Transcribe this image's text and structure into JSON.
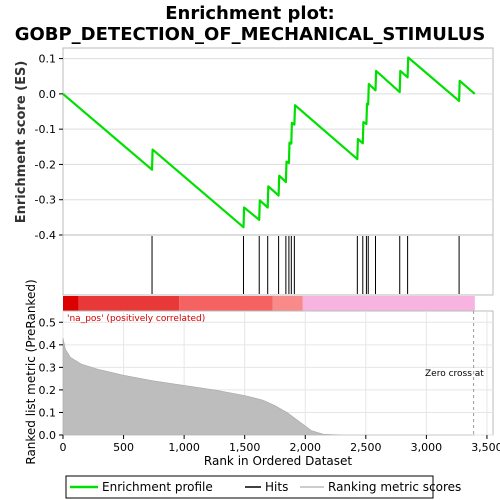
{
  "chart_data": {
    "type": "line",
    "title_line1": "Enrichment plot:",
    "title_line2": "GOBP_DETECTION_OF_MECHANICAL_STIMULUS",
    "top_panel": {
      "ylabel": "Enrichment score (ES)",
      "ylim": [
        -0.4,
        0.13
      ],
      "yticks": [
        {
          "v": 0.1,
          "label": "0.1"
        },
        {
          "v": 0.0,
          "label": "0.0"
        },
        {
          "v": -0.1,
          "label": "-0.1"
        },
        {
          "v": -0.2,
          "label": "-0.2"
        },
        {
          "v": -0.3,
          "label": "-0.3"
        },
        {
          "v": -0.4,
          "label": "-0.4"
        }
      ],
      "series": [
        {
          "name": "Enrichment profile",
          "color": "#00e000",
          "points": [
            [
              0,
              0.0
            ],
            [
              735,
              -0.215
            ],
            [
              740,
              -0.158
            ],
            [
              1490,
              -0.378
            ],
            [
              1495,
              -0.322
            ],
            [
              1620,
              -0.357
            ],
            [
              1625,
              -0.302
            ],
            [
              1690,
              -0.322
            ],
            [
              1695,
              -0.262
            ],
            [
              1780,
              -0.288
            ],
            [
              1785,
              -0.232
            ],
            [
              1840,
              -0.25
            ],
            [
              1845,
              -0.192
            ],
            [
              1865,
              -0.196
            ],
            [
              1870,
              -0.138
            ],
            [
              1885,
              -0.141
            ],
            [
              1890,
              -0.082
            ],
            [
              1910,
              -0.087
            ],
            [
              1915,
              -0.032
            ],
            [
              2430,
              -0.185
            ],
            [
              2435,
              -0.128
            ],
            [
              2475,
              -0.14
            ],
            [
              2480,
              -0.08
            ],
            [
              2505,
              -0.085
            ],
            [
              2510,
              -0.028
            ],
            [
              2520,
              -0.03
            ],
            [
              2525,
              0.028
            ],
            [
              2580,
              0.01
            ],
            [
              2585,
              0.065
            ],
            [
              2780,
              0.005
            ],
            [
              2785,
              0.065
            ],
            [
              2845,
              0.047
            ],
            [
              2850,
              0.103
            ],
            [
              3270,
              -0.02
            ],
            [
              3275,
              0.037
            ],
            [
              3400,
              0.0
            ]
          ]
        }
      ]
    },
    "hits": [
      735,
      1490,
      1620,
      1690,
      1780,
      1840,
      1865,
      1885,
      1910,
      2430,
      2475,
      2505,
      2520,
      2580,
      2780,
      2845,
      3270
    ],
    "bottom_panel": {
      "ylabel": "Ranked list metric (PreRanked)",
      "xlabel": "Rank in Ordered Dataset",
      "ylim": [
        0.0,
        0.55
      ],
      "xlim": [
        0,
        3550
      ],
      "yticks": [
        {
          "v": 0.0,
          "label": "0.0"
        },
        {
          "v": 0.1,
          "label": "0.1"
        },
        {
          "v": 0.2,
          "label": "0.2"
        },
        {
          "v": 0.3,
          "label": "0.3"
        },
        {
          "v": 0.4,
          "label": "0.4"
        },
        {
          "v": 0.5,
          "label": "0.5"
        }
      ],
      "xticks": [
        {
          "v": 0,
          "label": "0"
        },
        {
          "v": 500,
          "label": "500"
        },
        {
          "v": 1000,
          "label": "1,000"
        },
        {
          "v": 1500,
          "label": "1,500"
        },
        {
          "v": 2000,
          "label": "2,000"
        },
        {
          "v": 2500,
          "label": "2,500"
        },
        {
          "v": 3000,
          "label": "3,000"
        },
        {
          "v": 3500,
          "label": "3,500"
        }
      ],
      "metric_curve": [
        [
          0,
          0.43
        ],
        [
          20,
          0.38
        ],
        [
          60,
          0.345
        ],
        [
          150,
          0.315
        ],
        [
          300,
          0.29
        ],
        [
          500,
          0.265
        ],
        [
          750,
          0.24
        ],
        [
          1000,
          0.22
        ],
        [
          1250,
          0.2
        ],
        [
          1500,
          0.175
        ],
        [
          1650,
          0.155
        ],
        [
          1750,
          0.13
        ],
        [
          1850,
          0.1
        ],
        [
          1950,
          0.06
        ],
        [
          2050,
          0.02
        ],
        [
          2150,
          0.003
        ],
        [
          2300,
          0.0
        ],
        [
          3400,
          0.0
        ]
      ],
      "positive_label": "'na_pos' (positively correlated)",
      "zero_cross_label": "Zero cross at",
      "zero_cross_x": 3390
    },
    "color_bar": [
      {
        "from": 0,
        "to": 130,
        "color": "#dd0000"
      },
      {
        "from": 130,
        "to": 960,
        "color": "#e83838"
      },
      {
        "from": 960,
        "to": 1730,
        "color": "#f56262"
      },
      {
        "from": 1730,
        "to": 1980,
        "color": "#f88a8a"
      },
      {
        "from": 1980,
        "to": 3400,
        "color": "#f8b4e0"
      }
    ],
    "legend": [
      {
        "name": "Enrichment profile",
        "color": "#00e000"
      },
      {
        "name": "Hits",
        "color": "#000000"
      },
      {
        "name": "Ranking metric scores",
        "color": "#bbbbbb"
      }
    ]
  }
}
